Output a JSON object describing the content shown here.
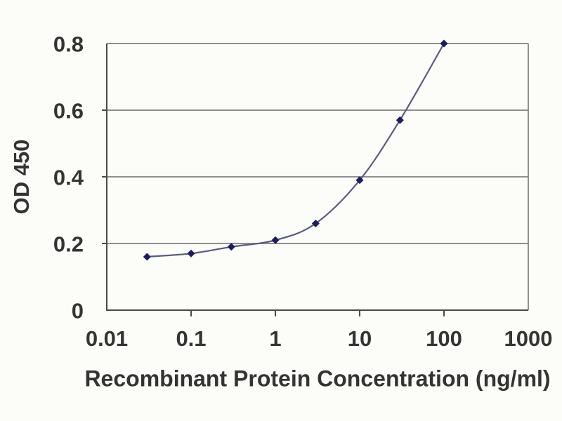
{
  "chart_data": {
    "type": "line",
    "title": "",
    "xlabel": "Recombinant Protein Concentration (ng/ml)",
    "ylabel": "OD 450",
    "x_scale": "log",
    "xlim": [
      0.01,
      1000
    ],
    "ylim": [
      0,
      0.8
    ],
    "x_ticks": [
      0.01,
      0.1,
      1,
      10,
      100,
      1000
    ],
    "x_tick_labels": [
      "0.01",
      "0.1",
      "1",
      "10",
      "100",
      "1000"
    ],
    "y_ticks": [
      0,
      0.2,
      0.4,
      0.6,
      0.8
    ],
    "y_tick_labels": [
      "0",
      "0.2",
      "0.4",
      "0.6",
      "0.8"
    ],
    "grid": "horizontal",
    "legend": false,
    "series": [
      {
        "name": "OD 450",
        "x": [
          0.03,
          0.1,
          0.3,
          1,
          3,
          10,
          30,
          100
        ],
        "y": [
          0.16,
          0.17,
          0.19,
          0.21,
          0.26,
          0.39,
          0.57,
          0.8
        ],
        "marker": "diamond",
        "line_color": "#5a5a85",
        "marker_color": "#1c1c66"
      }
    ],
    "colors": {
      "background": "#fcfcf8",
      "grid": "#8f8f8f",
      "axis": "#4a4a4a",
      "text": "#343434"
    }
  }
}
